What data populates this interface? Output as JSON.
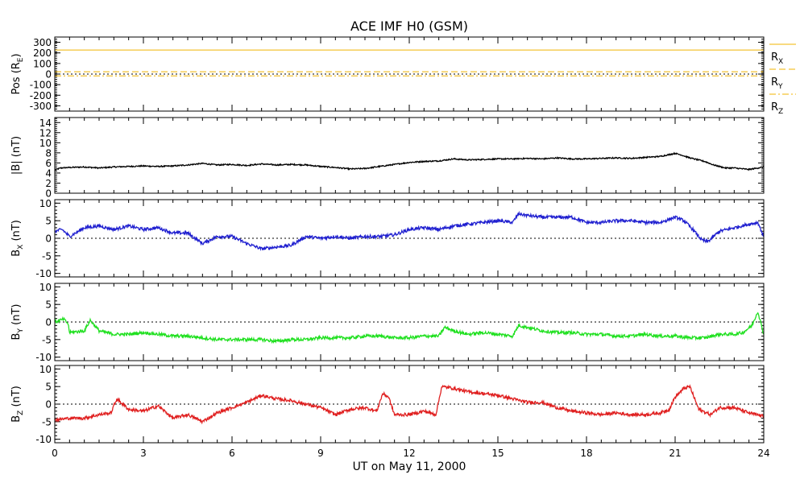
{
  "chart_data": {
    "type": "line",
    "title": "ACE IMF H0 (GSM)",
    "xlabel": "UT on May 11, 2000",
    "xlim": [
      0,
      24
    ],
    "xticks": [
      0,
      3,
      6,
      9,
      12,
      15,
      18,
      21,
      24
    ],
    "xtick_labels": [
      "0",
      "3",
      "6",
      "9",
      "12",
      "15",
      "18",
      "21",
      "24"
    ],
    "panels": [
      {
        "id": "pos",
        "ylabel_main": "Pos (R",
        "ylabel_sub": "E",
        "ylabel_tail": ")",
        "ylim": [
          -350,
          350
        ],
        "yticks": [
          -300,
          -200,
          -100,
          0,
          100,
          200,
          300
        ],
        "ytick_labels": [
          "-300",
          "-200",
          "-100",
          "0",
          "100",
          "200",
          "300"
        ],
        "series": [
          {
            "name": "R",
            "sub": "X",
            "color": "#f0b400",
            "dash": "",
            "x": [
              0,
              24
            ],
            "y": [
              227,
              227
            ]
          },
          {
            "name": "R",
            "sub": "Y",
            "color": "#f0b400",
            "dash": "8,4",
            "x": [
              0,
              24
            ],
            "y": [
              22,
              22
            ]
          },
          {
            "name": "R",
            "sub": "Z",
            "color": "#f0b400",
            "dash": "8,3,2,3",
            "x": [
              0,
              24
            ],
            "y": [
              -17,
              -17
            ]
          }
        ]
      },
      {
        "id": "btot",
        "ylabel_main": "|B| (nT)",
        "ylabel_sub": "",
        "ylabel_tail": "",
        "ylim": [
          0,
          15
        ],
        "yticks": [
          0,
          2,
          4,
          6,
          8,
          10,
          12,
          14
        ],
        "ytick_labels": [
          "0",
          "2",
          "4",
          "6",
          "8",
          "10",
          "12",
          "14"
        ],
        "series": [
          {
            "name": "|B|",
            "color": "#000000",
            "x": [
              0,
              0.2,
              0.5,
              1,
              1.5,
              2,
              2.5,
              3,
              3.5,
              4,
              4.5,
              5,
              5.5,
              6,
              6.5,
              7,
              7.5,
              8,
              8.5,
              9,
              9.5,
              10,
              10.5,
              11,
              11.5,
              12,
              12.5,
              13,
              13.5,
              14,
              14.5,
              15,
              15.5,
              16,
              16.5,
              17,
              17.5,
              18,
              18.5,
              19,
              19.5,
              20,
              20.5,
              21,
              21.2,
              21.5,
              22,
              22.3,
              22.7,
              23,
              23.5,
              24
            ],
            "y": [
              4.6,
              5.0,
              5.1,
              5.2,
              5.0,
              5.2,
              5.3,
              5.4,
              5.3,
              5.4,
              5.6,
              5.9,
              5.6,
              5.7,
              5.5,
              5.8,
              5.6,
              5.7,
              5.6,
              5.3,
              5.1,
              4.8,
              4.9,
              5.3,
              5.7,
              6.1,
              6.3,
              6.4,
              6.8,
              6.6,
              6.7,
              6.8,
              6.8,
              6.9,
              6.8,
              7.0,
              6.8,
              6.8,
              6.9,
              7.0,
              6.9,
              7.1,
              7.3,
              7.9,
              7.6,
              7.0,
              6.3,
              5.6,
              5.0,
              5.0,
              4.7,
              5.2
            ]
          }
        ]
      },
      {
        "id": "bx",
        "ylabel_main": "B",
        "ylabel_sub": "X",
        "ylabel_tail": " (nT)",
        "ylim": [
          -11,
          11
        ],
        "yticks": [
          -10,
          -5,
          0,
          5,
          10
        ],
        "ytick_labels": [
          "-10",
          "-5",
          "0",
          "5",
          "10"
        ],
        "zero_line": true,
        "series": [
          {
            "name": "B_X",
            "color": "#2020d0",
            "x": [
              0,
              0.25,
              0.5,
              1,
              1.5,
              2,
              2.5,
              3,
              3.5,
              4,
              4.5,
              5,
              5.5,
              6,
              6.5,
              7,
              7.5,
              8,
              8.5,
              9,
              9.5,
              10,
              10.5,
              11,
              11.5,
              12,
              12.5,
              13,
              13.5,
              14,
              14.5,
              15,
              15.5,
              15.7,
              16,
              16.5,
              17,
              17.5,
              18,
              18.5,
              19,
              19.5,
              20,
              20.5,
              21,
              21.3,
              21.6,
              21.9,
              22.1,
              22.5,
              23,
              23.5,
              23.8,
              24
            ],
            "y": [
              2,
              2.5,
              0.5,
              3,
              3.5,
              2.5,
              3.5,
              2.5,
              3,
              1.5,
              1.5,
              -1.5,
              0.5,
              0.5,
              -1.5,
              -3,
              -2.5,
              -2,
              0.5,
              0,
              0.5,
              0,
              0.5,
              0.5,
              1,
              2.5,
              3,
              2.5,
              3.5,
              4,
              4.5,
              5,
              4.5,
              7,
              6.5,
              6,
              6,
              6,
              4.5,
              4.5,
              5,
              5,
              4.5,
              4.5,
              6,
              5,
              2.5,
              -0.5,
              -1,
              2,
              3,
              4,
              4.5,
              0.5
            ]
          }
        ]
      },
      {
        "id": "by",
        "ylabel_main": "B",
        "ylabel_sub": "Y",
        "ylabel_tail": " (nT)",
        "ylim": [
          -11,
          11
        ],
        "yticks": [
          -10,
          -5,
          0,
          5,
          10
        ],
        "ytick_labels": [
          "-10",
          "-5",
          "0",
          "5",
          "10"
        ],
        "zero_line": true,
        "series": [
          {
            "name": "B_Y",
            "color": "#20e020",
            "x": [
              0,
              0.3,
              0.45,
              0.5,
              1,
              1.2,
              1.5,
              2,
              2.5,
              3,
              3.5,
              4,
              4.5,
              5,
              5.5,
              6,
              6.5,
              7,
              7.5,
              8,
              8.5,
              9,
              9.5,
              10,
              10.5,
              11,
              11.5,
              12,
              12.5,
              13,
              13.2,
              13.5,
              14,
              14.5,
              15,
              15.5,
              15.7,
              16,
              16.5,
              17,
              17.5,
              18,
              18.5,
              19,
              19.5,
              20,
              20.5,
              21,
              21.5,
              22,
              22.5,
              23,
              23.3,
              23.6,
              23.8,
              24
            ],
            "y": [
              0,
              0.8,
              -0.5,
              -3,
              -2.5,
              0.5,
              -2.5,
              -3.5,
              -3.5,
              -3,
              -3.5,
              -4,
              -4,
              -4.5,
              -5,
              -5,
              -5,
              -5,
              -5.5,
              -5,
              -5,
              -4.5,
              -4.5,
              -4.5,
              -4,
              -4,
              -4.5,
              -4.5,
              -4,
              -4,
              -1.5,
              -2.5,
              -3.5,
              -3,
              -3.5,
              -4,
              -1,
              -1.5,
              -2.5,
              -3,
              -3,
              -3.5,
              -3.5,
              -4,
              -4,
              -3.5,
              -4,
              -4,
              -4.5,
              -4.5,
              -3.5,
              -3.5,
              -3,
              -1,
              3,
              -3.5
            ]
          }
        ]
      },
      {
        "id": "bz",
        "ylabel_main": "B",
        "ylabel_sub": "Z",
        "ylabel_tail": " (nT)",
        "ylim": [
          -11,
          11
        ],
        "yticks": [
          -10,
          -5,
          0,
          5,
          10
        ],
        "ytick_labels": [
          "-10",
          "-5",
          "0",
          "5",
          "10"
        ],
        "zero_line": true,
        "series": [
          {
            "name": "B_Z",
            "color": "#e02020",
            "x": [
              0,
              0.5,
              1,
              1.5,
              1.9,
              2.1,
              2.5,
              3,
              3.5,
              4,
              4.5,
              5,
              5.5,
              6,
              6.5,
              7,
              7.5,
              8,
              8.5,
              9,
              9.5,
              10,
              10.5,
              10.9,
              11.1,
              11.3,
              11.5,
              12,
              12.5,
              12.9,
              13.1,
              13.5,
              14,
              14.5,
              15,
              15.5,
              16,
              16.5,
              17,
              17.5,
              18,
              18.5,
              19,
              19.5,
              20,
              20.5,
              20.8,
              21,
              21.3,
              21.5,
              21.8,
              22.2,
              22.5,
              23,
              23.5,
              24
            ],
            "y": [
              -4.5,
              -4,
              -4,
              -3,
              -2.5,
              1.5,
              -1.5,
              -2,
              -0.5,
              -4,
              -3,
              -5,
              -2.5,
              -1,
              0.5,
              2.5,
              1.5,
              1,
              0,
              -1,
              -3,
              -1.5,
              -1,
              -2,
              3,
              2,
              -3,
              -3,
              -2,
              -3,
              5,
              4.5,
              3.5,
              3,
              2.5,
              1.5,
              0.5,
              0.5,
              -1,
              -2,
              -2.5,
              -3,
              -2.5,
              -3,
              -3,
              -2.5,
              -1.5,
              2,
              4.5,
              5,
              -1.5,
              -3,
              -1,
              -1,
              -2.5,
              -3.5
            ]
          }
        ]
      }
    ]
  }
}
